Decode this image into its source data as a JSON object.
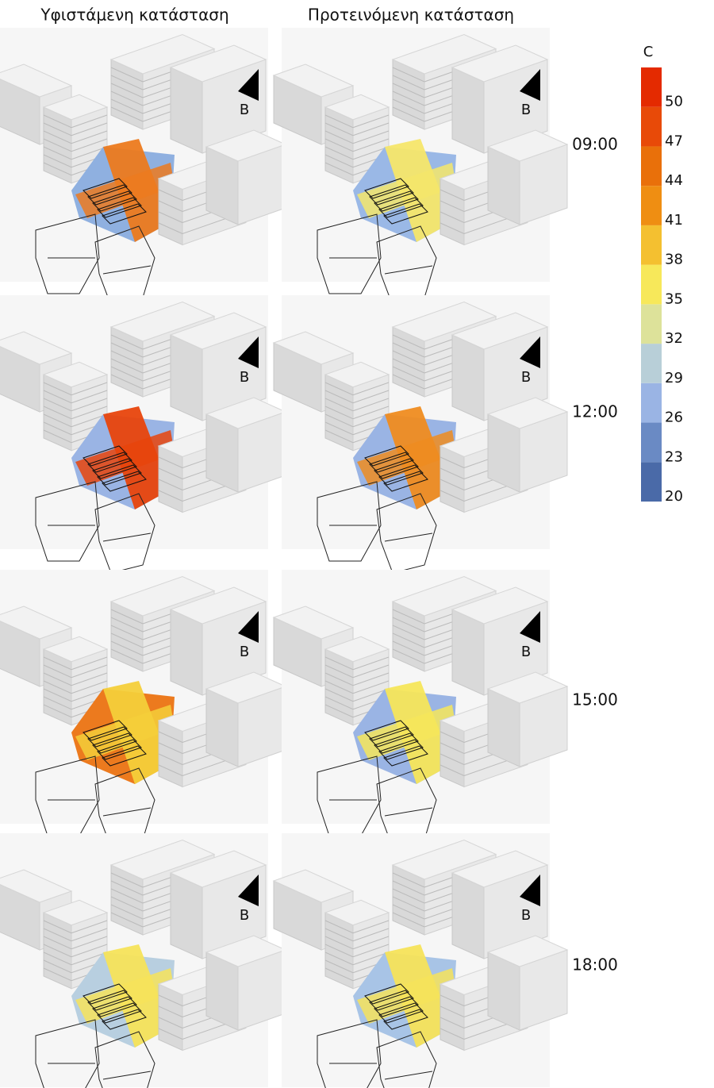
{
  "columns": [
    "Υφιστάμενη κατάσταση",
    "Προτεινόμενη κατάσταση"
  ],
  "rows": [
    {
      "time": "09:00",
      "panels": [
        {
          "north": "B",
          "colors": [
            "#ec7a1e",
            "#8fb0e0"
          ]
        },
        {
          "north": "B",
          "colors": [
            "#f5e66a",
            "#9ab8e6"
          ]
        }
      ]
    },
    {
      "time": "12:00",
      "panels": [
        {
          "north": "B",
          "colors": [
            "#e8440c",
            "#9ab4e4"
          ]
        },
        {
          "north": "B",
          "colors": [
            "#ef8c20",
            "#9ab4e4"
          ]
        }
      ]
    },
    {
      "time": "15:00",
      "panels": [
        {
          "north": "B",
          "colors": [
            "#f4cf3a",
            "#ec7a1e"
          ]
        },
        {
          "north": "B",
          "colors": [
            "#f6e65a",
            "#9ab4e4"
          ]
        }
      ]
    },
    {
      "time": "18:00",
      "panels": [
        {
          "north": "B",
          "colors": [
            "#f6e35a",
            "#b8cfe0"
          ]
        },
        {
          "north": "B",
          "colors": [
            "#f6e35a",
            "#a8c4e6"
          ]
        }
      ]
    }
  ],
  "legend": {
    "title": "C",
    "range": [
      20,
      53
    ],
    "ticks": [
      20,
      23,
      26,
      29,
      32,
      35,
      38,
      41,
      44,
      47,
      50
    ],
    "colors": [
      "#4a6aa8",
      "#6a8ac4",
      "#9ab4e4",
      "#b8cfd8",
      "#dde29a",
      "#f7e85a",
      "#f4c030",
      "#ef8e12",
      "#e9700a",
      "#e84a08",
      "#e42a00"
    ]
  }
}
